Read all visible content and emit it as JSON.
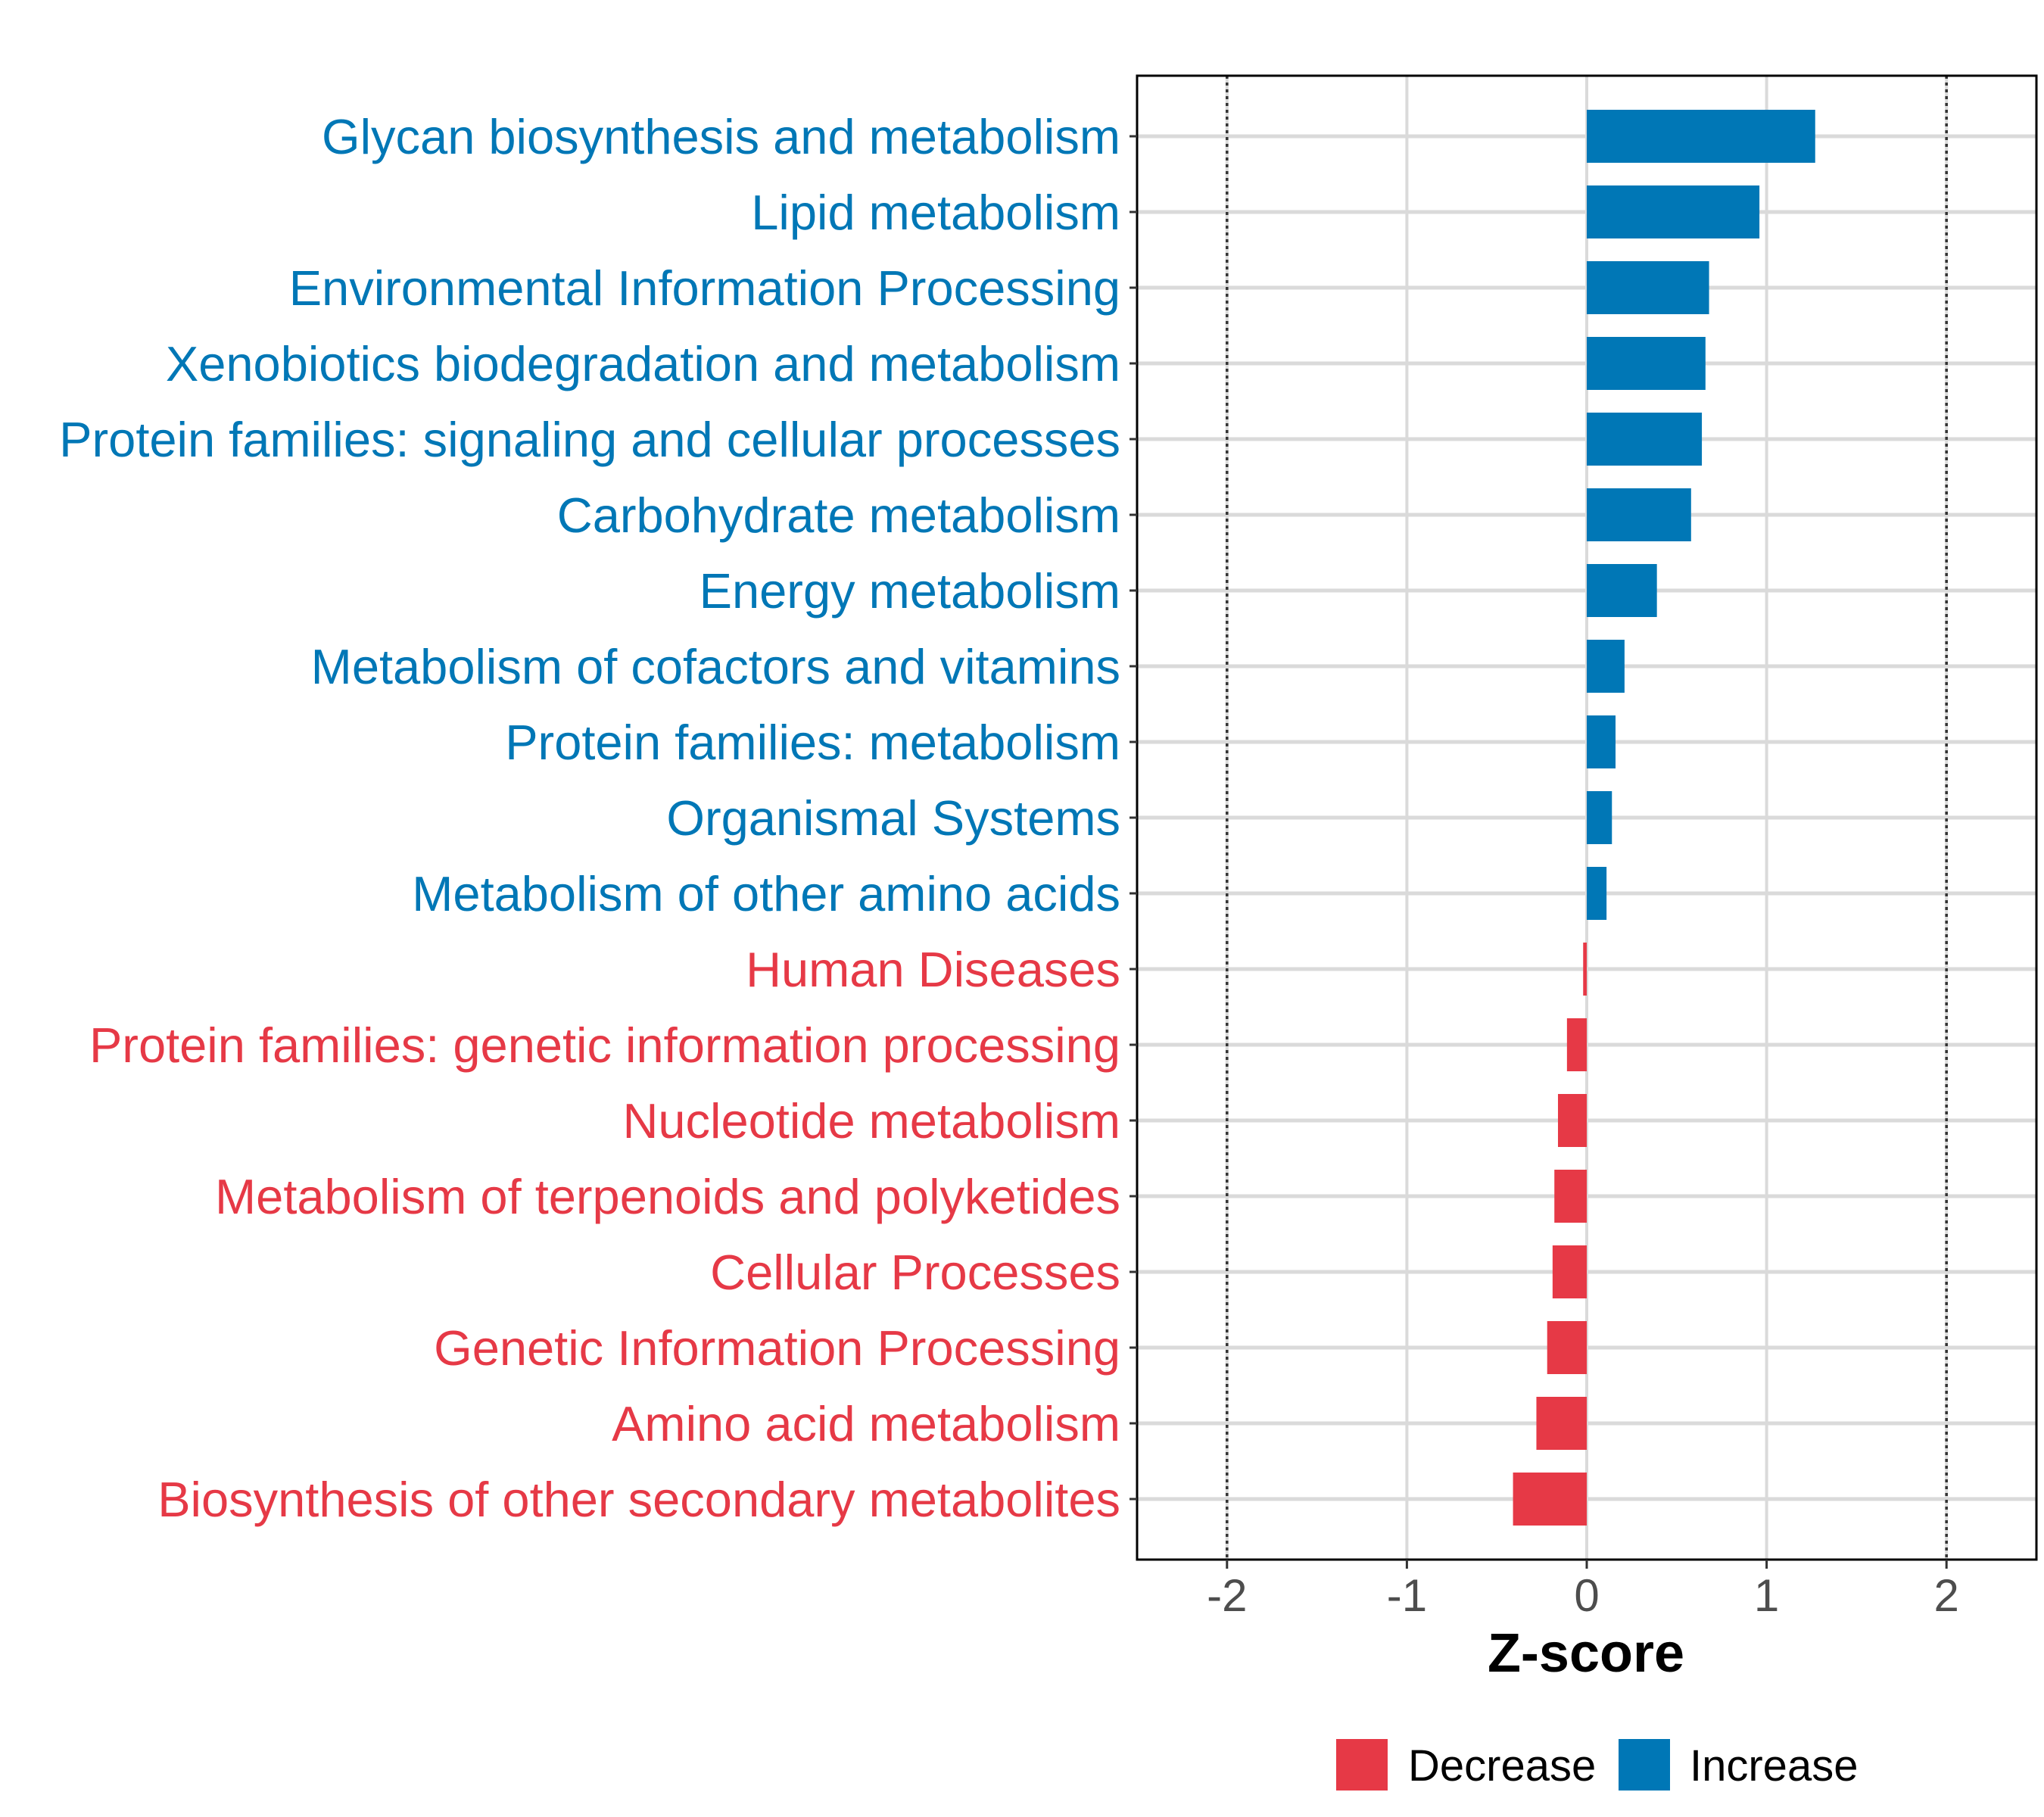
{
  "chart_data": {
    "type": "bar",
    "orientation": "horizontal",
    "xlabel": "Z-score",
    "ylabel": "",
    "xlim": [
      -2.5,
      2.5
    ],
    "x_ticks": [
      -2,
      -1,
      0,
      1,
      2
    ],
    "x_tick_labels": [
      "-2",
      "-1",
      "0",
      "1",
      "2"
    ],
    "reference_lines": [
      -2,
      2
    ],
    "grid": true,
    "legend_position": "bottom",
    "categories": [
      "Glycan biosynthesis and metabolism",
      "Lipid metabolism",
      "Environmental Information Processing",
      "Xenobiotics biodegradation and metabolism",
      "Protein families: signaling and cellular processes",
      "Carbohydrate metabolism",
      "Energy metabolism",
      "Metabolism of cofactors and vitamins",
      "Protein families: metabolism",
      "Organismal Systems",
      "Metabolism of other amino acids",
      "Human Diseases",
      "Protein families: genetic information processing",
      "Nucleotide metabolism",
      "Metabolism of terpenoids and polyketides",
      "Cellular Processes",
      "Genetic Information Processing",
      "Amino acid metabolism",
      "Biosynthesis of other secondary metabolites"
    ],
    "values": [
      1.27,
      0.96,
      0.68,
      0.66,
      0.64,
      0.58,
      0.39,
      0.21,
      0.16,
      0.14,
      0.11,
      -0.02,
      -0.11,
      -0.16,
      -0.18,
      -0.19,
      -0.22,
      -0.28,
      -0.41
    ],
    "groups": [
      "Increase",
      "Increase",
      "Increase",
      "Increase",
      "Increase",
      "Increase",
      "Increase",
      "Increase",
      "Increase",
      "Increase",
      "Increase",
      "Decrease",
      "Decrease",
      "Decrease",
      "Decrease",
      "Decrease",
      "Decrease",
      "Decrease",
      "Decrease"
    ],
    "legend": [
      {
        "name": "Decrease",
        "color": "#e63946"
      },
      {
        "name": "Increase",
        "color": "#0077b6"
      }
    ],
    "colors": {
      "Increase": "#0077b6",
      "Decrease": "#e63946"
    }
  }
}
